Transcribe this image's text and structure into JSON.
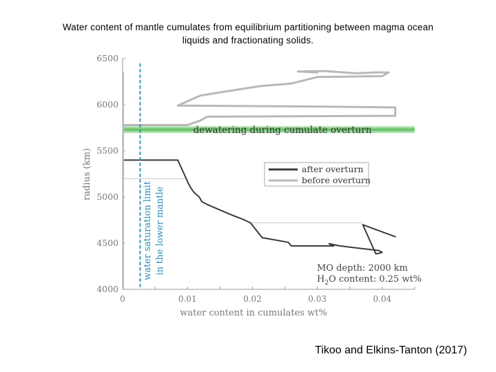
{
  "slide": {
    "title_line1": "Water content of mantle cumulates from equilibrium partitioning between magma ocean",
    "title_line2": "liquids and fractionating solids.",
    "citation": "Tikoo and Elkins-Tanton (2017)"
  },
  "chart_data": {
    "type": "line",
    "xlabel": "water content in cumulates wt%",
    "ylabel": "radius (km)",
    "xlim": [
      0,
      0.045
    ],
    "ylim": [
      4000,
      6500
    ],
    "x_ticks": [
      "0",
      "0.01",
      "0.02",
      "0.03",
      "0.04"
    ],
    "y_ticks": [
      "4000",
      "4500",
      "5000",
      "5500",
      "6000",
      "6500"
    ],
    "colors": {
      "after": "#3a3a3a",
      "before": "#b8b8b8",
      "saturation": "#2b8cb0",
      "dewatering": "#5cbf5c"
    },
    "band": {
      "label": "dewatering during cumulate overturn",
      "y_range": [
        5690,
        5770
      ]
    },
    "saturation_limit": {
      "x": 0.0027,
      "label_line1": "water saturation limit",
      "label_line2": "in the lower mantle"
    },
    "legend": {
      "after_label": "after overturn",
      "before_label": "before overturn"
    },
    "annotation": {
      "line1": "MO depth: 2000 km",
      "line2_prefix": "H",
      "line2_sub": "2",
      "line2_suffix": "O content: 0.25 wt%"
    },
    "series": [
      {
        "name": "after overturn",
        "points": [
          [
            0.0001,
            5200
          ],
          [
            0.0001,
            5400
          ],
          [
            0.0085,
            5400
          ],
          [
            0.0098,
            5200
          ],
          [
            0.0101,
            5150
          ],
          [
            0.0105,
            5100
          ],
          [
            0.011,
            5050
          ],
          [
            0.0118,
            5000
          ],
          [
            0.0122,
            4950
          ],
          [
            0.013,
            4920
          ],
          [
            0.015,
            4860
          ],
          [
            0.017,
            4800
          ],
          [
            0.0185,
            4760
          ],
          [
            0.0197,
            4720
          ],
          [
            0.0215,
            4560
          ],
          [
            0.0255,
            4510
          ],
          [
            0.026,
            4470
          ],
          [
            0.0325,
            4470
          ],
          [
            0.0318,
            4495
          ],
          [
            0.0335,
            4470
          ],
          [
            0.0395,
            4420
          ],
          [
            0.04,
            4400
          ],
          [
            0.0395,
            4390
          ],
          [
            0.039,
            4385
          ],
          [
            0.037,
            4700
          ],
          [
            0.042,
            4570
          ]
        ]
      },
      {
        "name": "before overturn",
        "points": [
          [
            0.0001,
            5700
          ],
          [
            0.0001,
            5780
          ],
          [
            0.01,
            5780
          ],
          [
            0.012,
            5830
          ],
          [
            0.013,
            5870
          ],
          [
            0.042,
            5880
          ],
          [
            0.042,
            5970
          ],
          [
            0.031,
            5980
          ],
          [
            0.0085,
            5990
          ],
          [
            0.012,
            6100
          ],
          [
            0.021,
            6200
          ],
          [
            0.026,
            6230
          ],
          [
            0.03,
            6300
          ],
          [
            0.04,
            6310
          ],
          [
            0.041,
            6350
          ],
          [
            0.039,
            6350
          ],
          [
            0.036,
            6340
          ],
          [
            0.033,
            6355
          ],
          [
            0.031,
            6365
          ],
          [
            0.027,
            6360
          ],
          [
            0.03,
            6350
          ]
        ]
      },
      {
        "name": "left edge",
        "points": [
          [
            0.0001,
            4000
          ],
          [
            0.0001,
            6350
          ]
        ]
      }
    ]
  }
}
